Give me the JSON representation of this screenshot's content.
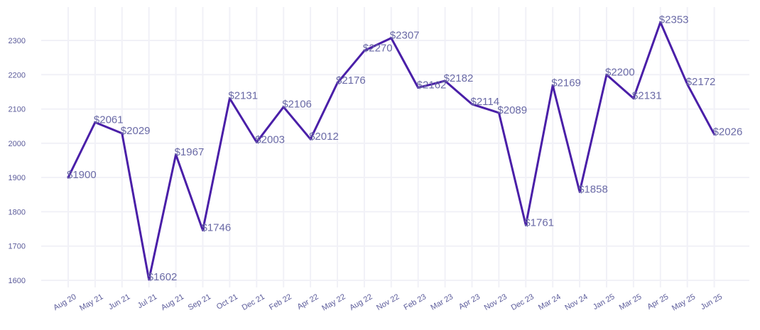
{
  "chart_data": {
    "type": "line",
    "title": "",
    "xlabel": "",
    "ylabel": "",
    "ylim": [
      1580,
      2375
    ],
    "yticks": [
      1600,
      1700,
      1800,
      1900,
      2000,
      2100,
      2200,
      2300
    ],
    "grid": true,
    "label_prefix": "$",
    "line_color": "#4a1fa8",
    "categories": [
      "Aug 20",
      "May 21",
      "Jun 21",
      "Jul 21",
      "Aug 21",
      "Sep 21",
      "Oct 21",
      "Dec 21",
      "Feb 22",
      "Apr 22",
      "May 22",
      "Aug 22",
      "Nov 22",
      "Feb 23",
      "Mar 23",
      "Apr 23",
      "Nov 23",
      "Dec 23",
      "Mar 24",
      "Nov 24",
      "Jan 25",
      "Mar 25",
      "Apr 25",
      "May 25",
      "Jun 25"
    ],
    "values": [
      1900,
      2061,
      2029,
      1602,
      1967,
      1746,
      2131,
      2003,
      2106,
      2012,
      2176,
      2270,
      2307,
      2162,
      2182,
      2114,
      2089,
      1761,
      2169,
      1858,
      2200,
      2131,
      2353,
      2172,
      2026
    ]
  }
}
